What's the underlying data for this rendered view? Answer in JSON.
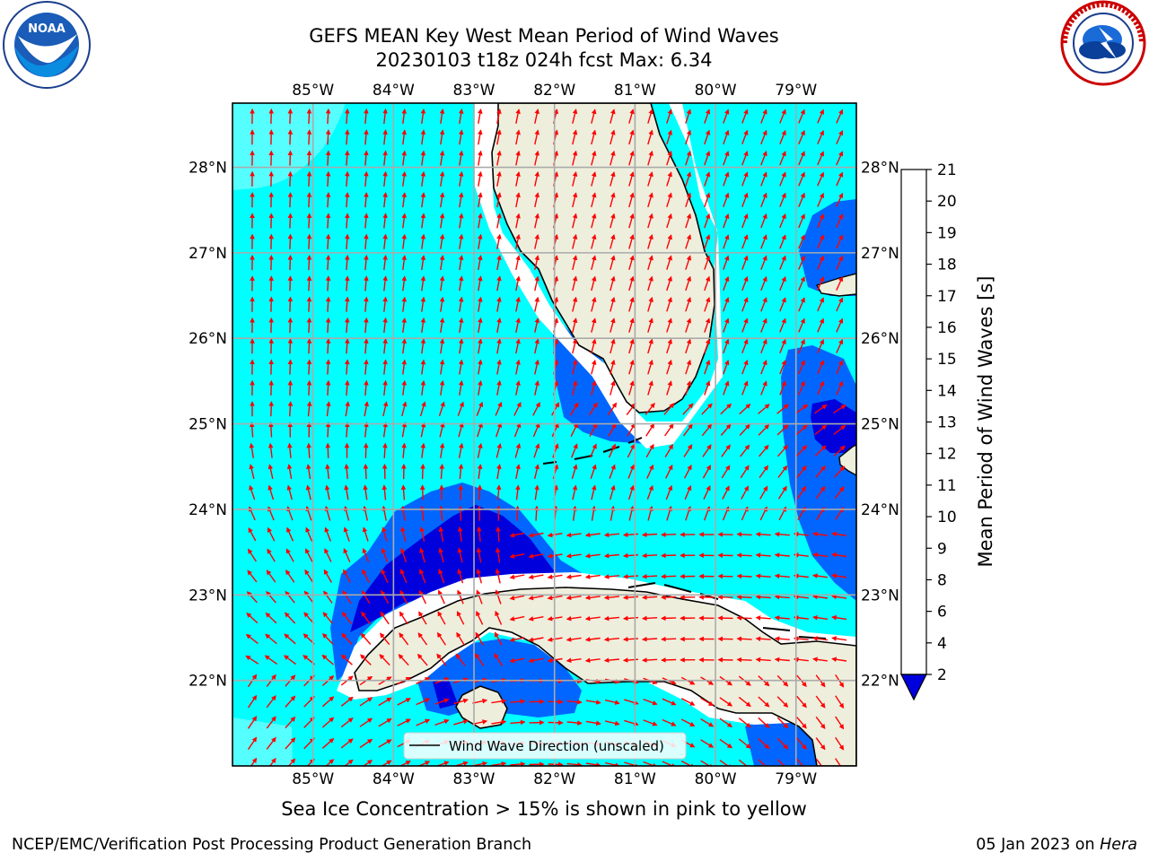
{
  "header": {
    "title_line1": "GEFS MEAN Key West Mean Period of Wind Waves",
    "title_line2": "20230103 t18z 024h fcst   Max: 6.34"
  },
  "logos": {
    "left": {
      "icon": "noaa-logo",
      "text": "NOAA",
      "ring_text": "NATIONAL OCEANIC AND ATMOSPHERIC ADMINISTRATION · U.S. DEPARTMENT OF COMMERCE"
    },
    "right": {
      "icon": "nws-logo",
      "ring_text": "NATIONAL WEATHER SERVICE"
    }
  },
  "map": {
    "lon_labels": [
      "85°W",
      "84°W",
      "83°W",
      "82°W",
      "81°W",
      "80°W",
      "79°W"
    ],
    "lat_labels": [
      "28°N",
      "27°N",
      "26°N",
      "25°N",
      "24°N",
      "23°N",
      "22°N"
    ],
    "extent": {
      "lon_min": -86,
      "lon_max": -78.25,
      "lat_min": 21,
      "lat_max": 28.75
    },
    "gridlines": true,
    "legend": {
      "label": "Wind Wave Direction (unscaled)",
      "position": "bottom-center"
    },
    "arrow_color": "#ff0000",
    "land_color": "#eeeedd",
    "field_shading": {
      "2-4": "#0066ff",
      "below-2": "#0000dd",
      "4-6": "#00ffff",
      "6-8": "#55ffff"
    }
  },
  "colorbar": {
    "title": "Mean Period of Wind Waves [s]",
    "ticks": [
      "2",
      "4",
      "6",
      "8",
      "9",
      "10",
      "11",
      "12",
      "13",
      "14",
      "15",
      "16",
      "17",
      "18",
      "19",
      "20",
      "21"
    ],
    "colors": [
      "#0066ff",
      "#00ffff",
      "#55ffff",
      "#a0ffff",
      "#55ff88",
      "#22dd22",
      "#00ee00",
      "#55ee00",
      "#aaee00",
      "#ccee00",
      "#eeee00",
      "#ffff00",
      "#ffdd00",
      "#ffbb00",
      "#ff8800",
      "#ff5500",
      "#ff2200",
      "#ff0000"
    ],
    "under_color": "#0000dd"
  },
  "note": "Sea Ice Concentration > 15% is shown in pink to yellow",
  "footer": {
    "left": "NCEP/EMC/Verification Post Processing Product Generation Branch",
    "right_date": "05 Jan 2023 on ",
    "right_host": "Hera"
  }
}
